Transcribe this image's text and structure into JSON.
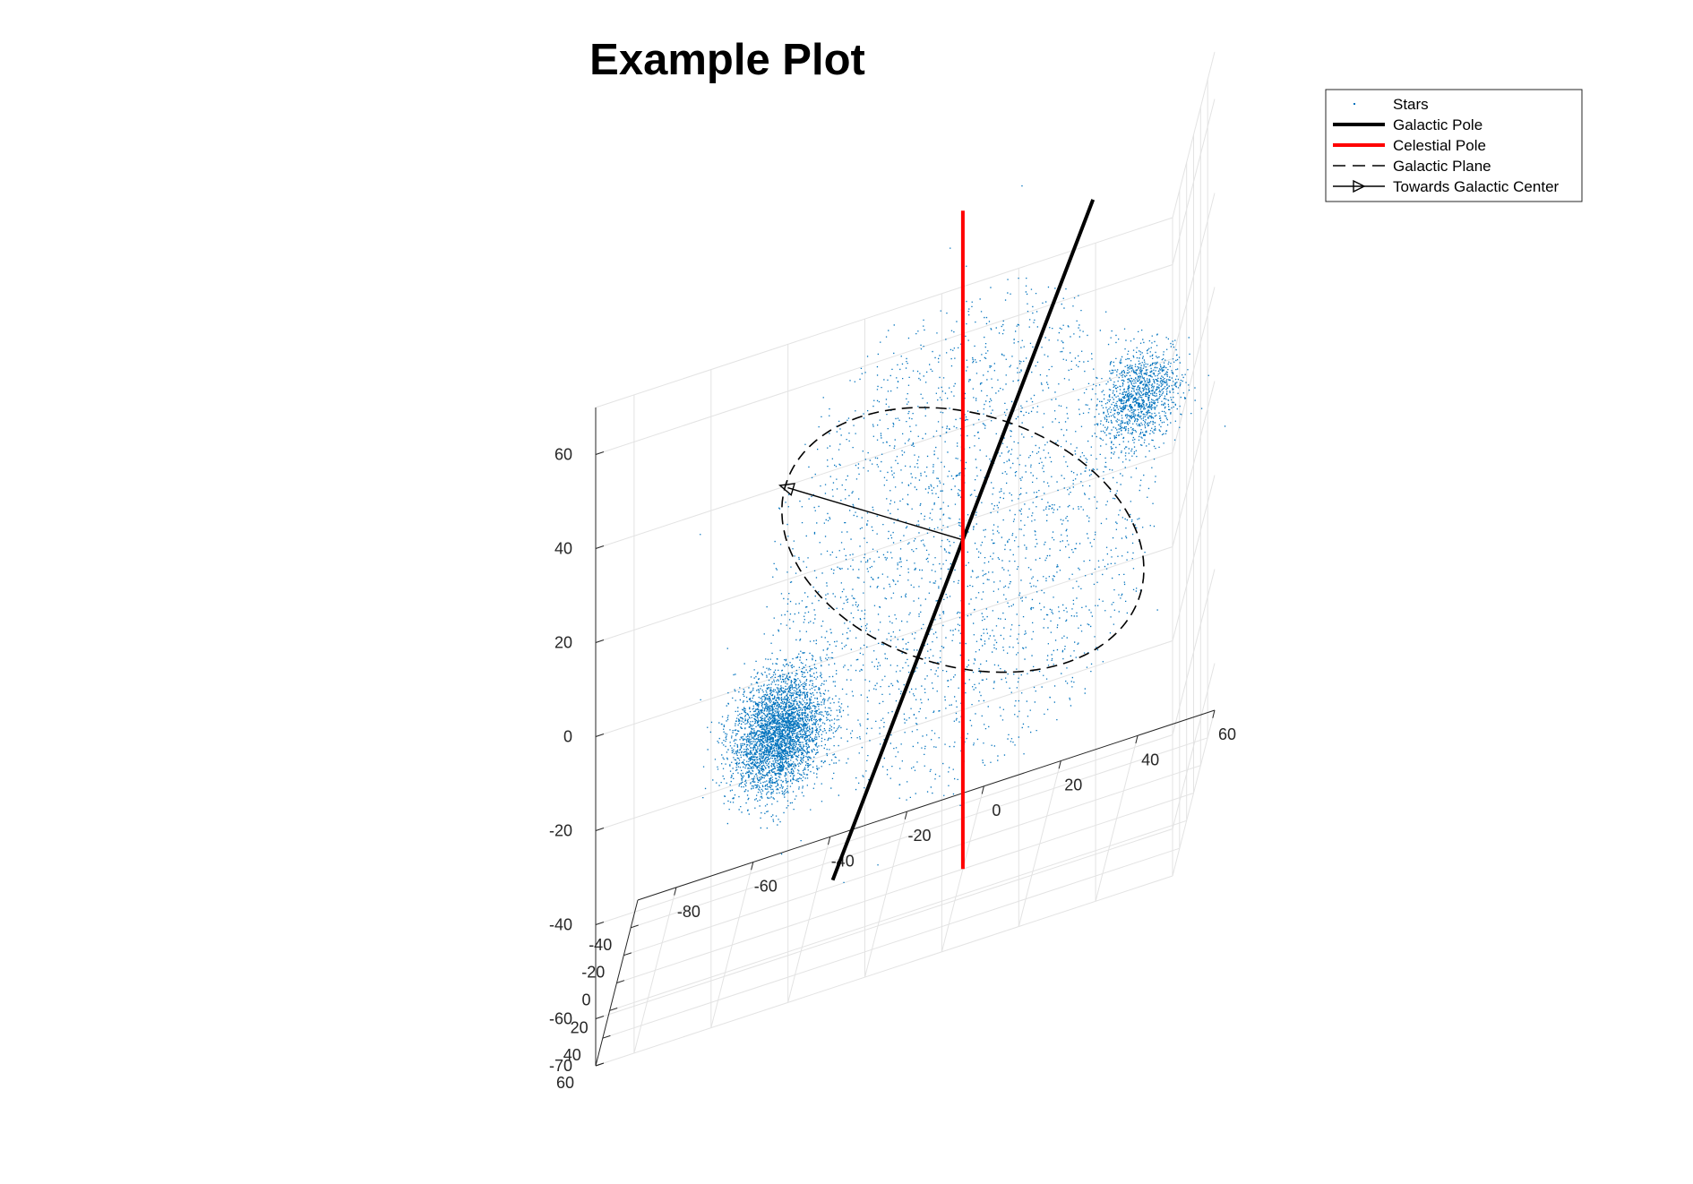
{
  "chart_data": {
    "type": "scatter3d",
    "title": "Example Plot",
    "xlabel": "",
    "ylabel": "",
    "zlabel": "",
    "grid": true,
    "legend_position": "top-right",
    "axes": {
      "x": {
        "lim": [
          -60,
          60
        ],
        "ticks": [
          -40,
          -20,
          0,
          20,
          40,
          60
        ]
      },
      "y": {
        "lim": [
          -90,
          60
        ],
        "ticks": [
          -80,
          -60,
          -40,
          -20,
          0,
          20,
          40,
          60
        ]
      },
      "z": {
        "lim": [
          -70,
          70
        ],
        "ticks": [
          -60,
          -40,
          -20,
          0,
          20,
          40,
          60
        ]
      }
    },
    "series": [
      {
        "name": "Stars",
        "style": "points",
        "color": "#0072BD",
        "distribution": {
          "shape": "sphere",
          "center": [
            0,
            0,
            0
          ],
          "radius": 52,
          "count": 30000
        },
        "clusters": [
          {
            "center": [
              0,
              -48,
              -28
            ],
            "spread": 6,
            "count": 3500
          },
          {
            "center": [
              0,
              46,
              18
            ],
            "spread": 5,
            "count": 1200
          }
        ]
      },
      {
        "name": "Galactic Pole",
        "style": "line",
        "color": "#000000",
        "points": [
          [
            -53,
            29,
            49
          ],
          [
            53,
            -29,
            -49
          ]
        ]
      },
      {
        "name": "Celestial Pole",
        "style": "line",
        "color": "#FF0000",
        "points": [
          [
            0,
            0,
            -70
          ],
          [
            0,
            0,
            70
          ]
        ]
      },
      {
        "name": "Galactic Plane",
        "style": "dashed-circle",
        "color": "#000000",
        "center": [
          0,
          0,
          0
        ],
        "radius": 52,
        "normal": [
          -53,
          29,
          49
        ]
      },
      {
        "name": "Towards Galactic Center",
        "style": "line-with-arrow",
        "color": "#000000",
        "points": [
          [
            0,
            0,
            0
          ],
          [
            -5,
            -46,
            22
          ]
        ]
      }
    ]
  }
}
